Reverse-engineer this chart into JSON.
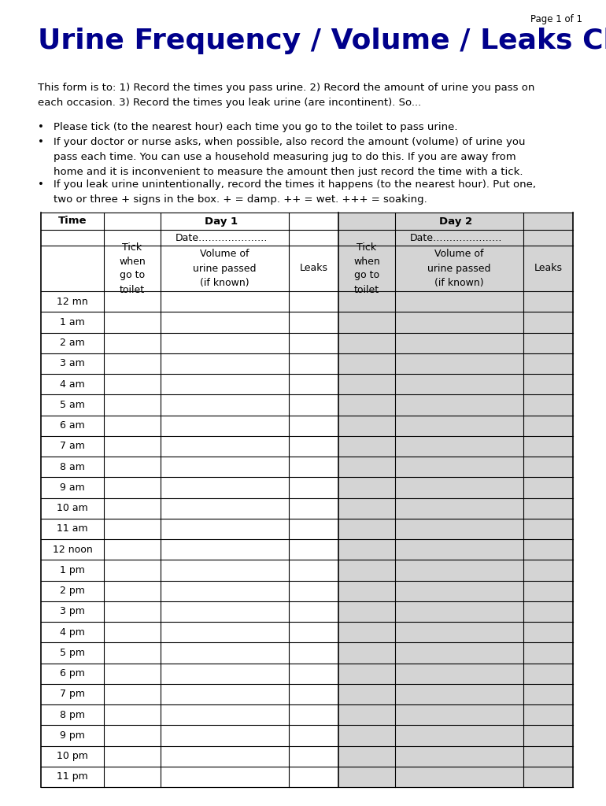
{
  "page_label": "Page 1 of 1",
  "title": "Urine Frequency / Volume / Leaks Chart",
  "title_color": "#00008B",
  "intro_text": "This form is to: 1) Record the times you pass urine. 2) Record the amount of urine you pass on\neach occasion. 3) Record the times you leak urine (are incontinent). So...",
  "bullets": [
    "Please tick (to the nearest hour) each time you go to the toilet to pass urine.",
    "If your doctor or nurse asks, when possible, also record the amount (volume) of urine you\npass each time. You can use a household measuring jug to do this. If you are away from\nhome and it is inconvenient to measure the amount then just record the time with a tick.",
    "If you leak urine unintentionally, record the times it happens (to the nearest hour). Put one,\ntwo or three + signs in the box. + = damp. ++ = wet. +++ = soaking."
  ],
  "time_labels": [
    "12 mn",
    "1 am",
    "2 am",
    "3 am",
    "4 am",
    "5 am",
    "6 am",
    "7 am",
    "8 am",
    "9 am",
    "10 am",
    "11 am",
    "12 noon",
    "1 pm",
    "2 pm",
    "3 pm",
    "4 pm",
    "5 pm",
    "6 pm",
    "7 pm",
    "8 pm",
    "9 pm",
    "10 pm",
    "11 pm"
  ],
  "bg_color": "#ffffff",
  "shaded_color": "#d4d4d4",
  "table_border": "#000000",
  "text_color": "#000000",
  "font_size_title": 26,
  "font_size_body": 9.5,
  "font_size_table_header": 9.5,
  "font_size_table_data": 9.0,
  "font_size_page": 8.5
}
